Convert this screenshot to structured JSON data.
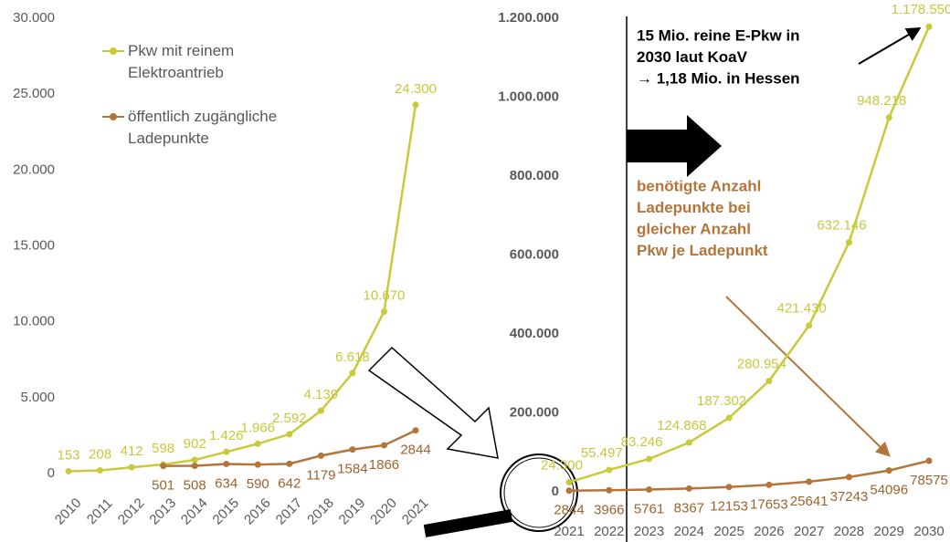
{
  "chart_data": [
    {
      "type": "line",
      "categories": [
        "2010",
        "2011",
        "2012",
        "2013",
        "2014",
        "2015",
        "2016",
        "2017",
        "2018",
        "2019",
        "2020",
        "2021"
      ],
      "series": [
        {
          "name": "Pkw mit reinem Elektroantrieb",
          "color": "#c9c93a",
          "values": [
            153,
            208,
            412,
            598,
            902,
            1426,
            1966,
            2592,
            4139,
            6618,
            10670,
            24300
          ],
          "value_labels": [
            "153",
            "208",
            "412",
            "598",
            "902",
            "1.426",
            "1.966",
            "2.592",
            "4.139",
            "6.618",
            "10.670",
            "24.300"
          ]
        },
        {
          "name": "öffentlich zugängliche Ladepunkte",
          "color": "#b5743a",
          "values": [
            null,
            null,
            null,
            501,
            508,
            634,
            590,
            642,
            1179,
            1584,
            1866,
            2844
          ]
        }
      ],
      "ylim": [
        0,
        30000
      ],
      "yticks": [
        0,
        {
          "value": 5000,
          "label": "5.000"
        },
        {
          "value": 10000,
          "label": "10.000"
        },
        {
          "value": 15000,
          "label": "15.000"
        },
        {
          "value": 20000,
          "label": "20.000"
        },
        {
          "value": 25000,
          "label": "25.000"
        },
        {
          "value": 30000,
          "label": "30.000"
        }
      ],
      "legend": "upper left"
    },
    {
      "type": "line",
      "categories": [
        "2021",
        "2022",
        "2023",
        "2024",
        "2025",
        "2026",
        "2027",
        "2028",
        "2029",
        "2030"
      ],
      "series": [
        {
          "name": "Pkw",
          "color": "#c9c93a",
          "values": [
            24300,
            55497,
            83246,
            124868,
            187302,
            280954,
            421430,
            632146,
            948218,
            1178550
          ],
          "value_labels": [
            "24.300",
            "55.497",
            "83.246",
            "124.868",
            "187.302",
            "280.954",
            "421.430",
            "632.146",
            "948.218",
            "1.178.550"
          ]
        },
        {
          "name": "Ladepunkte",
          "color": "#b5743a",
          "values": [
            2844,
            3966,
            5761,
            8367,
            12153,
            17653,
            25641,
            37243,
            54096,
            78575
          ]
        }
      ],
      "ylim": [
        0,
        1200000
      ],
      "yticks": [
        0,
        {
          "value": 200000,
          "label": "200.000"
        },
        {
          "value": 400000,
          "label": "400.000"
        },
        {
          "value": 600000,
          "label": "600.000"
        },
        {
          "value": 800000,
          "label": "800.000"
        },
        {
          "value": 1000000,
          "label": "1.000.000"
        },
        {
          "value": 1200000,
          "label": "1.200.000"
        }
      ],
      "annotations": [
        {
          "lines": [
            "15 Mio. reine E-Pkw in",
            "2030 laut KoaV",
            "→ 1,18 Mio. in Hessen"
          ],
          "color": "#000000"
        },
        {
          "lines": [
            "benötigte Anzahl",
            "Ladepunkte bei",
            "gleicher Anzahl",
            "Pkw je Ladepunkt"
          ],
          "color": "#b5743a"
        }
      ]
    }
  ]
}
